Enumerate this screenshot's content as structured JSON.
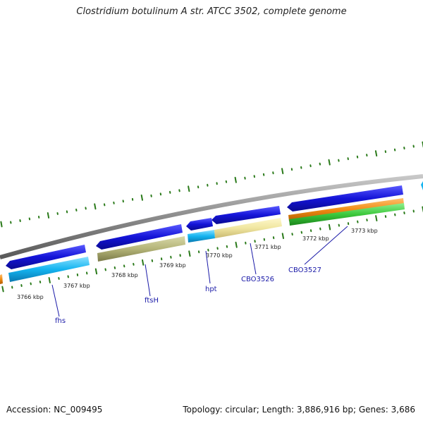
{
  "title": "Clostridium botulinum A str. ATCC 3502, complete genome",
  "accession": "Accession: NC_009495",
  "summary": "Topology: circular; Length: 3,886,916 bp; Genes: 3,686",
  "colors": {
    "backbone": "#8c8c8c",
    "cds_forward": "#1414d8",
    "cds_cyan": "#14b4f0",
    "cds_olive": "#b4b478",
    "cds_cream": "#f0e6a0",
    "cds_orange": "#f08c14",
    "cds_green": "#3cc83c",
    "tick": "#2a7a1a",
    "gene_label": "#1a1aa8"
  },
  "kbp_labels": [
    "3766 kbp",
    "3767 kbp",
    "3768 kbp",
    "3769 kbp",
    "3770 kbp",
    "3771 kbp",
    "3772 kbp",
    "3773 kbp"
  ],
  "gene_labels": [
    "fhs",
    "ftsH",
    "hpt",
    "CBO3526",
    "CBO3527"
  ]
}
